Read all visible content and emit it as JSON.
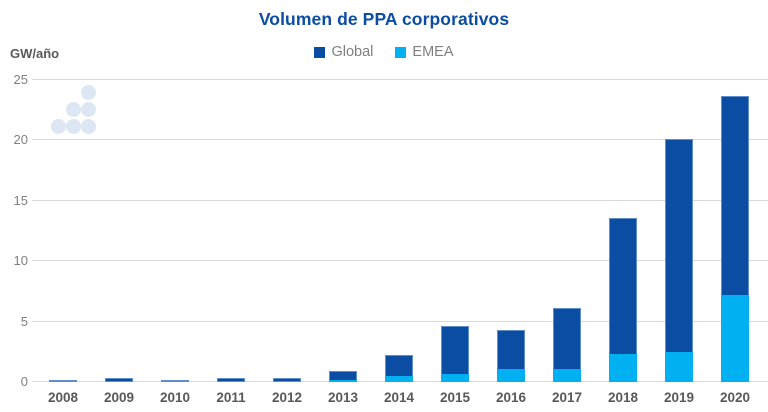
{
  "header": {
    "title": "Volumen de PPA corporativos",
    "unit_label": "GW/año"
  },
  "legend": {
    "items": [
      {
        "label": "Global",
        "color": "#0b4da2"
      },
      {
        "label": "EMEA",
        "color": "#00b0f0"
      }
    ]
  },
  "colors": {
    "title": "#0b4da2",
    "global_series": "#0b4da2",
    "emea_series": "#00b0f0",
    "gridline": "#d9d9d9",
    "axis_text": "#7f7f7f",
    "year_text": "#595959"
  },
  "decoration": {
    "dots_color": "#dce7f3",
    "dots_icon": "dots-triangle-decoration"
  },
  "chart_data": {
    "type": "bar",
    "mode": "overlay",
    "title": "Volumen de PPA corporativos",
    "xlabel": "",
    "ylabel": "GW/año",
    "categories": [
      "2008",
      "2009",
      "2010",
      "2011",
      "2012",
      "2013",
      "2014",
      "2015",
      "2016",
      "2017",
      "2018",
      "2019",
      "2020"
    ],
    "series": [
      {
        "name": "Global",
        "color": "#0b4da2",
        "values": [
          0.15,
          0.35,
          0.15,
          0.35,
          0.35,
          0.9,
          2.2,
          4.6,
          4.3,
          6.1,
          13.6,
          20.1,
          23.7
        ]
      },
      {
        "name": "EMEA",
        "color": "#00b0f0",
        "values": [
          0,
          0,
          0,
          0,
          0,
          0.2,
          0.5,
          0.7,
          1.1,
          1.1,
          2.3,
          2.5,
          7.2
        ]
      }
    ],
    "ylim": [
      0,
      25
    ],
    "yticks": [
      0,
      5,
      10,
      15,
      20,
      25
    ],
    "grid": true,
    "legend_position": "top-center"
  }
}
